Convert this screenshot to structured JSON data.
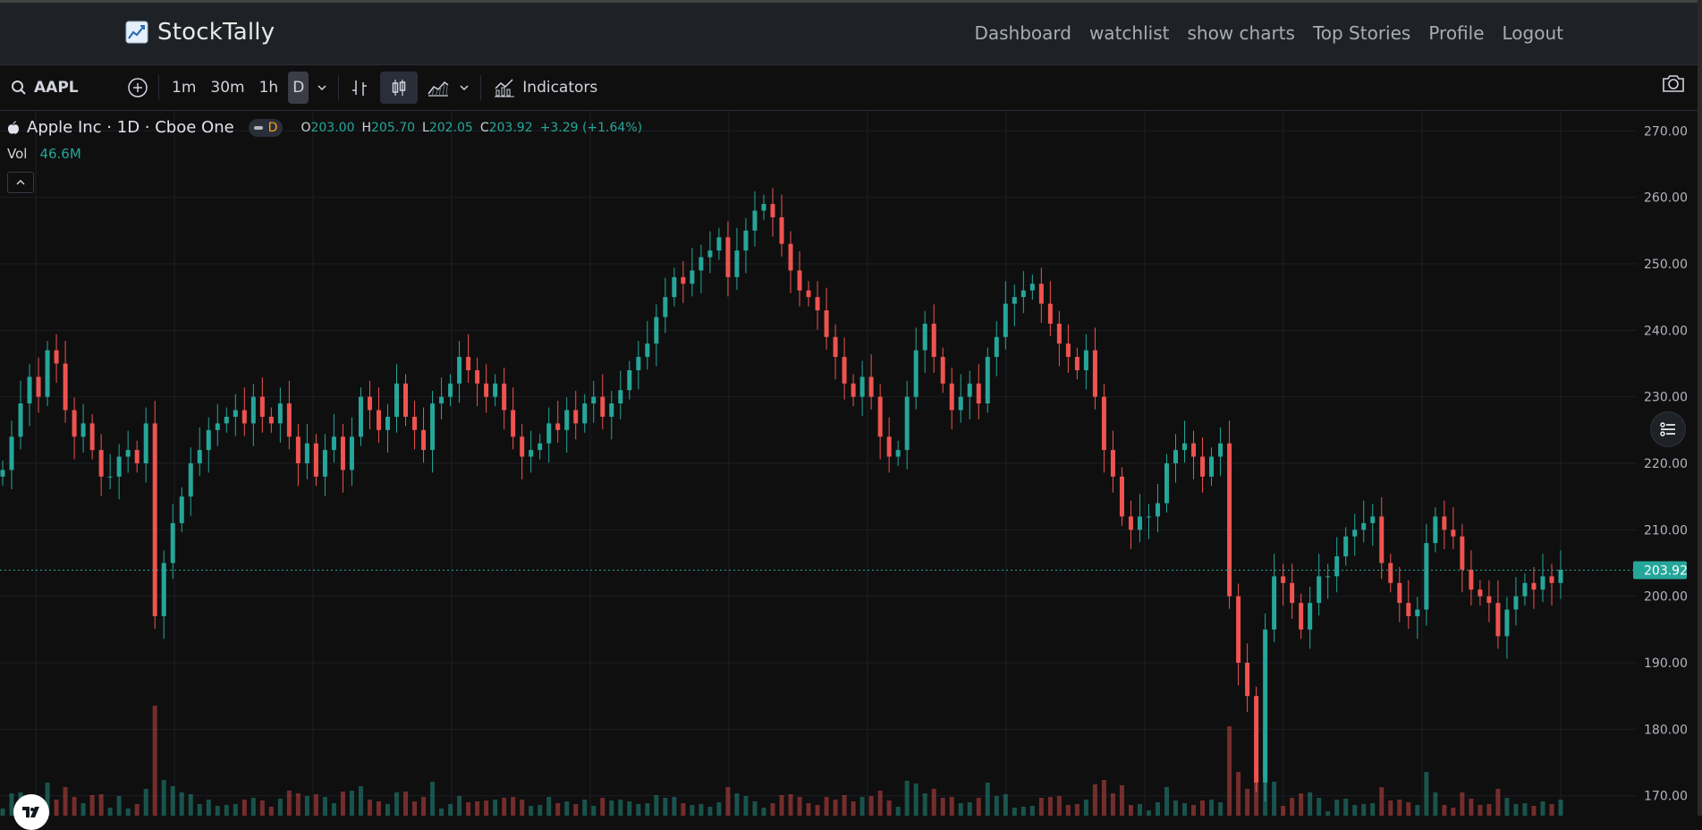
{
  "app": {
    "brand": "StockTally",
    "nav": [
      "Dashboard",
      "watchlist",
      "show charts",
      "Top Stories",
      "Profile",
      "Logout"
    ]
  },
  "toolbar": {
    "symbol": "AAPL",
    "intervals": [
      "1m",
      "30m",
      "1h",
      "D"
    ],
    "active_interval": "D",
    "indicators_label": "Indicators"
  },
  "legend": {
    "title": "Apple Inc · 1D · Cboe One",
    "badge": "D",
    "open_label": "O",
    "open": "203.00",
    "high_label": "H",
    "high": "205.70",
    "low_label": "L",
    "low": "202.05",
    "close_label": "C",
    "close": "203.92",
    "change": "+3.29 (+1.64%)",
    "vol_label": "Vol",
    "vol": "46.6M"
  },
  "colors": {
    "up": "#26a69a",
    "down": "#ef5350",
    "background": "#0f0f0f",
    "grid": "#1c1f24"
  },
  "chart_data": {
    "type": "candlestick",
    "y_axis_ticks": [
      170,
      180,
      190,
      200,
      210,
      220,
      230,
      240,
      250,
      260,
      270
    ],
    "y_axis_tick_labels": [
      "170.00",
      "180.00",
      "190.00",
      "200.00",
      "210.00",
      "220.00",
      "230.00",
      "240.00",
      "250.00",
      "260.00",
      "270.00"
    ],
    "ylim": [
      167,
      273
    ],
    "last_price": 203.92,
    "last_price_label": "203.92",
    "closes": [
      219,
      224,
      229,
      233,
      230,
      237,
      235,
      228,
      224,
      226,
      222,
      218,
      218,
      221,
      222,
      220,
      226,
      197,
      205,
      211,
      215,
      220,
      222,
      225,
      226,
      227,
      228,
      226,
      230,
      227,
      226,
      229,
      224,
      220,
      223,
      218,
      222,
      224,
      219,
      224,
      230,
      228,
      225,
      227,
      232,
      227,
      225,
      222,
      229,
      230,
      232,
      236,
      234,
      232,
      230,
      232,
      228,
      224,
      221,
      222,
      223,
      226,
      225,
      228,
      226,
      229,
      230,
      227,
      229,
      231,
      234,
      236,
      238,
      242,
      245,
      248,
      247,
      249,
      251,
      252,
      254,
      248,
      252,
      255,
      258,
      259,
      257,
      253,
      249,
      246,
      245,
      243,
      239,
      236,
      232,
      230,
      233,
      230,
      224,
      221,
      222,
      230,
      237,
      241,
      236,
      232,
      228,
      230,
      232,
      229,
      236,
      239,
      244,
      245,
      246,
      247,
      244,
      241,
      238,
      236,
      234,
      237,
      230,
      222,
      218,
      212,
      210,
      212,
      212,
      214,
      220,
      222,
      223,
      221,
      218,
      221,
      223,
      200,
      190,
      185,
      172,
      195,
      203,
      202,
      199,
      195,
      199,
      203,
      203,
      206,
      209,
      210,
      211,
      212,
      205,
      202,
      199,
      197,
      198,
      208,
      212,
      210,
      209,
      204,
      201,
      200,
      199,
      194,
      198,
      200,
      202,
      201,
      203,
      202,
      204
    ]
  }
}
